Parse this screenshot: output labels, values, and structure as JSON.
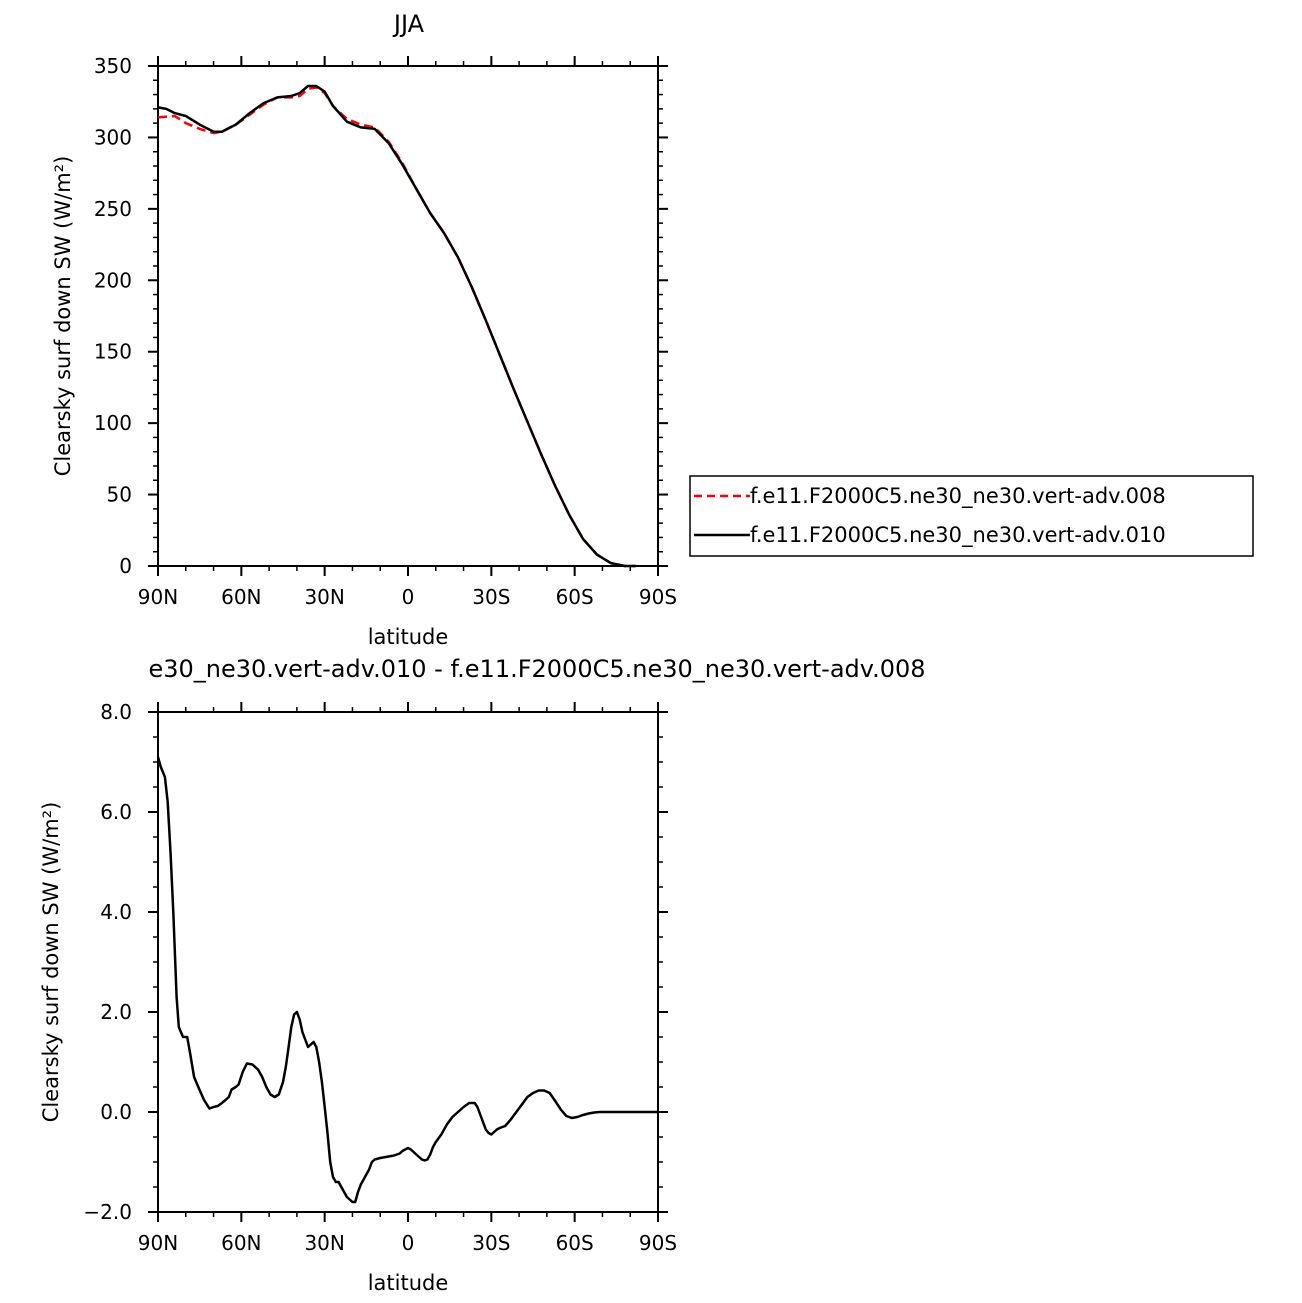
{
  "chart_data": [
    {
      "type": "line",
      "title": "JJA",
      "xlabel": "latitude",
      "ylabel": "Clearsky surf down SW (W/m²)",
      "xticks": [
        "90N",
        "60N",
        "30N",
        "0",
        "30S",
        "60S",
        "90S"
      ],
      "xlim": [
        90,
        -90
      ],
      "ylim": [
        0,
        350
      ],
      "yticks": [
        "0",
        "50",
        "100",
        "150",
        "200",
        "250",
        "300",
        "350"
      ],
      "legend_position": "right",
      "series": [
        {
          "name": "f.e11.F2000C5.ne30_ne30.vert-adv.008",
          "color": "#ff0000",
          "dash": "dashed",
          "x": [
            90,
            84,
            80,
            75,
            70,
            67,
            62,
            57,
            52,
            47,
            42,
            39,
            36,
            33,
            30,
            27,
            22,
            17,
            12,
            7,
            2,
            -3,
            -8,
            -13,
            -18,
            -23,
            -28,
            -33,
            -38,
            -43,
            -48,
            -53,
            -58,
            -63,
            -68,
            -73,
            -78,
            -82
          ],
          "y": [
            314,
            315,
            310,
            306,
            303,
            304,
            309,
            316,
            323,
            328,
            328,
            329,
            334,
            335,
            331,
            322,
            313,
            309,
            307,
            297,
            282,
            264,
            247,
            233,
            216,
            195,
            172,
            148,
            124,
            101,
            78,
            56,
            36,
            19,
            8,
            2,
            0,
            0
          ]
        },
        {
          "name": "f.e11.F2000C5.ne30_ne30.vert-adv.010",
          "color": "#000000",
          "dash": "solid",
          "x": [
            90,
            87,
            84,
            80,
            75,
            70,
            67,
            62,
            57,
            52,
            47,
            42,
            39,
            36,
            33,
            30,
            27,
            22,
            17,
            12,
            7,
            2,
            -3,
            -8,
            -13,
            -18,
            -23,
            -28,
            -33,
            -38,
            -43,
            -48,
            -53,
            -58,
            -63,
            -68,
            -73,
            -78,
            -82
          ],
          "y": [
            321,
            320,
            317,
            315,
            309,
            304,
            304,
            309,
            317,
            324,
            328,
            329,
            331,
            336,
            336,
            332,
            322,
            311,
            307,
            306,
            296,
            281,
            264,
            247,
            233,
            216,
            195,
            172,
            148,
            124,
            101,
            78,
            56,
            36,
            19,
            8,
            2,
            0,
            0
          ]
        }
      ]
    },
    {
      "type": "line",
      "title": "e30_ne30.vert-adv.010 - f.e11.F2000C5.ne30_ne30.vert-adv.008",
      "xlabel": "latitude",
      "ylabel": "Clearsky surf down SW (W/m²)",
      "xticks": [
        "90N",
        "60N",
        "30N",
        "0",
        "30S",
        "60S",
        "90S"
      ],
      "xlim": [
        90,
        -90
      ],
      "ylim": [
        -2.0,
        8.0
      ],
      "yticks": [
        "-2.0",
        "0.0",
        "2.0",
        "4.0",
        "6.0",
        "8.0"
      ],
      "series": [
        {
          "name": "",
          "color": "#000000",
          "x": [
            90,
            89,
            87.5,
            86.5,
            85.5,
            84.5,
            83.3,
            82.5,
            81,
            79.5,
            78.5,
            77,
            75.5,
            73.5,
            71.5,
            70,
            68.5,
            67,
            65.5,
            64.5,
            63.5,
            62,
            61,
            59.5,
            58,
            56,
            54,
            52.5,
            51,
            49.5,
            48,
            46.5,
            45,
            44,
            43,
            42,
            41,
            40,
            39,
            38,
            37,
            36,
            35,
            34,
            33,
            32,
            31,
            30,
            29,
            28,
            27,
            26,
            25,
            24,
            23,
            22,
            21,
            20,
            19,
            18.5,
            18,
            17,
            16,
            15,
            14,
            13,
            12,
            10,
            8,
            6,
            5,
            4,
            3,
            2,
            1,
            0,
            -1,
            -2,
            -3,
            -4,
            -5,
            -6,
            -7,
            -8,
            -9,
            -10,
            -12,
            -14,
            -16,
            -18,
            -20,
            -22,
            -24,
            -25,
            -26,
            -27,
            -28,
            -29,
            -30,
            -31,
            -32,
            -33,
            -34,
            -35,
            -37,
            -39,
            -41,
            -43,
            -45,
            -47,
            -49,
            -51,
            -53,
            -55,
            -57,
            -59,
            -61,
            -63,
            -65,
            -67,
            -69,
            -71,
            -75,
            -80,
            -85,
            -90
          ],
          "y": [
            7.1,
            6.9,
            6.7,
            6.2,
            5.2,
            4.0,
            2.3,
            1.7,
            1.5,
            1.5,
            1.2,
            0.7,
            0.5,
            0.25,
            0.07,
            0.1,
            0.12,
            0.18,
            0.25,
            0.3,
            0.45,
            0.5,
            0.55,
            0.8,
            0.97,
            0.95,
            0.85,
            0.7,
            0.5,
            0.35,
            0.3,
            0.35,
            0.6,
            0.9,
            1.3,
            1.7,
            1.95,
            2.0,
            1.85,
            1.6,
            1.45,
            1.3,
            1.35,
            1.4,
            1.3,
            1.0,
            0.6,
            0.1,
            -0.4,
            -1.0,
            -1.3,
            -1.4,
            -1.4,
            -1.5,
            -1.6,
            -1.7,
            -1.75,
            -1.8,
            -1.8,
            -1.7,
            -1.6,
            -1.45,
            -1.35,
            -1.25,
            -1.15,
            -1.0,
            -0.95,
            -0.92,
            -0.9,
            -0.88,
            -0.87,
            -0.85,
            -0.83,
            -0.78,
            -0.75,
            -0.72,
            -0.75,
            -0.8,
            -0.85,
            -0.9,
            -0.95,
            -0.97,
            -0.95,
            -0.85,
            -0.7,
            -0.6,
            -0.45,
            -0.25,
            -0.1,
            0.0,
            0.1,
            0.18,
            0.18,
            0.1,
            -0.05,
            -0.2,
            -0.35,
            -0.42,
            -0.45,
            -0.4,
            -0.35,
            -0.32,
            -0.3,
            -0.28,
            -0.15,
            0.0,
            0.15,
            0.3,
            0.38,
            0.43,
            0.43,
            0.38,
            0.22,
            0.05,
            -0.08,
            -0.12,
            -0.1,
            -0.06,
            -0.03,
            -0.01,
            0.0,
            0.0,
            0.0,
            0.0,
            0.0,
            0.0
          ]
        }
      ]
    }
  ]
}
